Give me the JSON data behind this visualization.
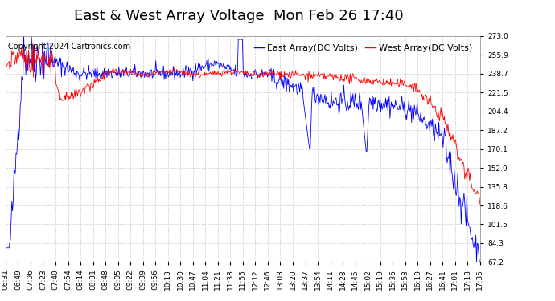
{
  "title": "East & West Array Voltage  Mon Feb 26 17:40",
  "copyright": "Copyright 2024 Cartronics.com",
  "legend_east": "East Array(DC Volts)",
  "legend_west": "West Array(DC Volts)",
  "east_color": "blue",
  "west_color": "red",
  "background_color": "#ffffff",
  "grid_color": "#cccccc",
  "yticks": [
    67.2,
    84.3,
    101.5,
    118.6,
    135.8,
    152.9,
    170.1,
    187.2,
    204.4,
    221.5,
    238.7,
    255.9,
    273.0
  ],
  "ymin": 67.2,
  "ymax": 273.0,
  "xtick_labels": [
    "06:31",
    "06:49",
    "07:06",
    "07:23",
    "07:40",
    "07:54",
    "08:14",
    "08:31",
    "08:48",
    "09:05",
    "09:22",
    "09:39",
    "09:56",
    "10:13",
    "10:30",
    "10:47",
    "11:04",
    "11:21",
    "11:38",
    "11:55",
    "12:12",
    "12:46",
    "13:03",
    "13:20",
    "13:37",
    "13:54",
    "14:11",
    "14:28",
    "14:45",
    "15:02",
    "15:19",
    "15:36",
    "15:53",
    "16:10",
    "16:27",
    "16:41",
    "17:01",
    "17:18",
    "17:35"
  ],
  "title_fontsize": 13,
  "tick_fontsize": 6.5,
  "legend_fontsize": 8,
  "copyright_fontsize": 7
}
